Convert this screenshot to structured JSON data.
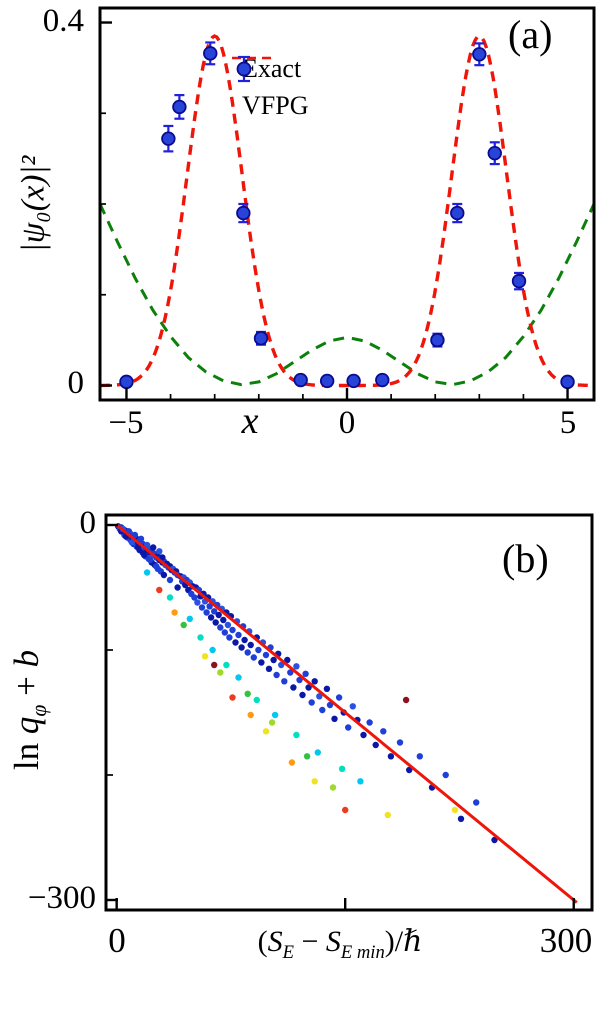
{
  "chart_data": [
    {
      "panel": "a",
      "type": "line+errorbar",
      "panel_label": "(a)",
      "xlabel": "x",
      "ylabel": "|ψ₀(x)|²",
      "xlim": [
        -5.6,
        5.6
      ],
      "ylim": [
        -0.016,
        0.416
      ],
      "xticks_major": [
        -5,
        0,
        5
      ],
      "xticks_minor": [
        -4,
        -3,
        -2,
        -1,
        1,
        2,
        3,
        4
      ],
      "xtick_labels": [
        "−5",
        "0",
        "5"
      ],
      "yticks_major": [
        0,
        0.4
      ],
      "yticks_minor": [
        0.1,
        0.2,
        0.3
      ],
      "ytick_labels": [
        "0",
        "0.4"
      ],
      "legend": [
        {
          "label": "Exact",
          "style": "red-dashed-line"
        },
        {
          "label": "VFPG",
          "style": "blue-errorbar-marker"
        }
      ],
      "exact_curve": {
        "model": "sum_of_gaussians",
        "amplitude": 0.385,
        "centers": [
          -3,
          3
        ],
        "sigma": 0.62,
        "color": "#ef1509"
      },
      "potential_curve": {
        "color": "#0b800b",
        "x": [
          -5.6,
          -5.2,
          -4.8,
          -4.4,
          -4,
          -3.6,
          -3.2,
          -2.8,
          -2.4,
          -2,
          -1.6,
          -1.2,
          -0.8,
          -0.4,
          0,
          0.4,
          0.8,
          1.2,
          1.6,
          2,
          2.4,
          2.8,
          3.2,
          3.6,
          4,
          4.4,
          4.8,
          5.2,
          5.6
        ],
        "y": [
          0.2,
          0.158,
          0.118,
          0.083,
          0.054,
          0.031,
          0.015,
          0.005,
          0.001,
          0.004,
          0.013,
          0.026,
          0.039,
          0.049,
          0.053,
          0.049,
          0.039,
          0.026,
          0.013,
          0.004,
          0.001,
          0.005,
          0.015,
          0.031,
          0.054,
          0.083,
          0.118,
          0.158,
          0.2
        ]
      },
      "vfpg_points": {
        "marker_fill": "#2743d8",
        "marker_edge": "#0b0b8f",
        "bar_color": "#2020dd",
        "points": [
          [
            -5,
            0.004,
            0.004
          ],
          [
            -4.05,
            0.272,
            0.014
          ],
          [
            -3.8,
            0.307,
            0.013
          ],
          [
            -3.1,
            0.366,
            0.012
          ],
          [
            -2.35,
            0.19,
            0.01
          ],
          [
            -1.95,
            0.052,
            0.007
          ],
          [
            -1.05,
            0.006,
            0.003
          ],
          [
            -0.45,
            0.005,
            0.003
          ],
          [
            0.15,
            0.005,
            0.003
          ],
          [
            0.8,
            0.006,
            0.003
          ],
          [
            2.05,
            0.05,
            0.007
          ],
          [
            2.5,
            0.19,
            0.01
          ],
          [
            3,
            0.365,
            0.012
          ],
          [
            3.35,
            0.256,
            0.012
          ],
          [
            3.9,
            0.115,
            0.009
          ],
          [
            5,
            0.004,
            0.004
          ]
        ]
      }
    },
    {
      "panel": "b",
      "type": "scatter+line",
      "panel_label": "(b)",
      "ylabel_parts": {
        "ln": "ln ",
        "q": "q",
        "sub": "φ",
        "plus": " + ",
        "b": "b"
      },
      "xlabel_parts": {
        "open": "(",
        "s1": "S",
        "sub1": "E",
        "minus": " − ",
        "s2": "S",
        "sub2": "E min",
        "close": ")/",
        "hbar": "ℏ"
      },
      "xlim": [
        -7,
        312
      ],
      "ylim": [
        8,
        -308
      ],
      "xticks": [
        0,
        150,
        300
      ],
      "xtick_labels": [
        "0",
        "300"
      ],
      "yticks_major": [
        0,
        -300
      ],
      "yticks_minor": [
        -100,
        -200
      ],
      "ytick_labels": [
        "0",
        "−300"
      ],
      "fit_line": {
        "x0": 0,
        "y0": 0,
        "x1": 302,
        "y1": -302,
        "color": "#ef1509"
      },
      "palette": [
        "#0a18a8",
        "#1f3fd9",
        "#2a52e0",
        "#00c8f0",
        "#00dfc0",
        "#35c240",
        "#9fd92e",
        "#f2e224",
        "#ff9a12",
        "#f03a1e",
        "#8f1020"
      ],
      "points": [
        [
          1,
          -1,
          0
        ],
        [
          2,
          -3,
          1
        ],
        [
          3,
          -2,
          0
        ],
        [
          4,
          -5,
          1
        ],
        [
          5,
          -4,
          0
        ],
        [
          5,
          -8,
          2
        ],
        [
          6,
          -6,
          1
        ],
        [
          7,
          -5,
          0
        ],
        [
          7,
          -10,
          1
        ],
        [
          8,
          -8,
          0
        ],
        [
          9,
          -7,
          2
        ],
        [
          9,
          -12,
          1
        ],
        [
          10,
          -10,
          0
        ],
        [
          11,
          -9,
          1
        ],
        [
          11,
          -15,
          0
        ],
        [
          12,
          -12,
          2
        ],
        [
          13,
          -11,
          0
        ],
        [
          13,
          -17,
          1
        ],
        [
          14,
          -14,
          0
        ],
        [
          15,
          -13,
          1
        ],
        [
          15,
          -20,
          0
        ],
        [
          16,
          -16,
          2
        ],
        [
          17,
          -15,
          1
        ],
        [
          17,
          -22,
          0
        ],
        [
          18,
          -18,
          1
        ],
        [
          19,
          -17,
          0
        ],
        [
          19,
          -25,
          1
        ],
        [
          20,
          -20,
          0
        ],
        [
          21,
          -19,
          2
        ],
        [
          21,
          -27,
          1
        ],
        [
          22,
          -22,
          0
        ],
        [
          23,
          -21,
          1
        ],
        [
          23,
          -30,
          0
        ],
        [
          24,
          -24,
          2
        ],
        [
          25,
          -23,
          1
        ],
        [
          25,
          -32,
          0
        ],
        [
          26,
          -26,
          1
        ],
        [
          27,
          -25,
          0
        ],
        [
          27,
          -35,
          1
        ],
        [
          28,
          -28,
          0
        ],
        [
          29,
          -27,
          2
        ],
        [
          29,
          -37,
          1
        ],
        [
          30,
          -30,
          0
        ],
        [
          31,
          -29,
          1
        ],
        [
          31,
          -40,
          0
        ],
        [
          32,
          -32,
          2
        ],
        [
          33,
          -31,
          0
        ],
        [
          34,
          -34,
          1
        ],
        [
          35,
          -33,
          0
        ],
        [
          35,
          -44,
          1
        ],
        [
          36,
          -36,
          0
        ],
        [
          37,
          -35,
          2
        ],
        [
          38,
          -38,
          1
        ],
        [
          39,
          -37,
          0
        ],
        [
          40,
          -40,
          1
        ],
        [
          40,
          -50,
          0
        ],
        [
          2,
          -2,
          1
        ],
        [
          3,
          -5,
          0
        ],
        [
          4,
          -3,
          2
        ],
        [
          6,
          -9,
          0
        ],
        [
          8,
          -5,
          1
        ],
        [
          10,
          -14,
          2
        ],
        [
          12,
          -8,
          1
        ],
        [
          14,
          -18,
          0
        ],
        [
          16,
          -11,
          1
        ],
        [
          18,
          -24,
          0
        ],
        [
          20,
          -16,
          2
        ],
        [
          22,
          -28,
          1
        ],
        [
          24,
          -18,
          0
        ],
        [
          26,
          -33,
          1
        ],
        [
          28,
          -21,
          2
        ],
        [
          30,
          -26,
          0
        ],
        [
          42,
          -41,
          0
        ],
        [
          43,
          -45,
          1
        ],
        [
          44,
          -42,
          2
        ],
        [
          45,
          -48,
          0
        ],
        [
          46,
          -44,
          1
        ],
        [
          47,
          -52,
          0
        ],
        [
          48,
          -46,
          2
        ],
        [
          49,
          -55,
          1
        ],
        [
          50,
          -49,
          0
        ],
        [
          51,
          -58,
          1
        ],
        [
          52,
          -50,
          0
        ],
        [
          53,
          -62,
          2
        ],
        [
          54,
          -52,
          1
        ],
        [
          55,
          -57,
          0
        ],
        [
          56,
          -66,
          1
        ],
        [
          57,
          -55,
          0
        ],
        [
          58,
          -61,
          2
        ],
        [
          59,
          -70,
          1
        ],
        [
          60,
          -58,
          0
        ],
        [
          61,
          -65,
          1
        ],
        [
          62,
          -74,
          0
        ],
        [
          63,
          -61,
          2
        ],
        [
          64,
          -69,
          1
        ],
        [
          65,
          -78,
          0
        ],
        [
          66,
          -64,
          1
        ],
        [
          67,
          -72,
          0
        ],
        [
          68,
          -82,
          1
        ],
        [
          69,
          -67,
          2
        ],
        [
          70,
          -76,
          0
        ],
        [
          71,
          -86,
          1
        ],
        [
          72,
          -70,
          0
        ],
        [
          73,
          -80,
          2
        ],
        [
          74,
          -90,
          1
        ],
        [
          75,
          -73,
          0
        ],
        [
          76,
          -84,
          1
        ],
        [
          78,
          -94,
          0
        ],
        [
          79,
          -77,
          2
        ],
        [
          80,
          -88,
          1
        ],
        [
          82,
          -98,
          0
        ],
        [
          83,
          -81,
          1
        ],
        [
          84,
          -92,
          0
        ],
        [
          86,
          -102,
          1
        ],
        [
          87,
          -85,
          2
        ],
        [
          88,
          -96,
          0
        ],
        [
          90,
          -106,
          1
        ],
        [
          92,
          -90,
          0
        ],
        [
          93,
          -100,
          1
        ],
        [
          95,
          -110,
          0
        ],
        [
          96,
          -94,
          2
        ],
        [
          98,
          -104,
          1
        ],
        [
          100,
          -115,
          0
        ],
        [
          101,
          -98,
          1
        ],
        [
          103,
          -108,
          0
        ],
        [
          105,
          -120,
          1
        ],
        [
          106,
          -103,
          0
        ],
        [
          108,
          -112,
          2
        ],
        [
          110,
          -125,
          1
        ],
        [
          112,
          -108,
          0
        ],
        [
          114,
          -118,
          1
        ],
        [
          116,
          -130,
          0
        ],
        [
          118,
          -113,
          2
        ],
        [
          120,
          -124,
          1
        ],
        [
          122,
          -136,
          0
        ],
        [
          124,
          -119,
          1
        ],
        [
          126,
          -130,
          0
        ],
        [
          128,
          -142,
          1
        ],
        [
          130,
          -125,
          0
        ],
        [
          133,
          -137,
          2
        ],
        [
          135,
          -148,
          1
        ],
        [
          138,
          -131,
          0
        ],
        [
          140,
          -144,
          1
        ],
        [
          143,
          -155,
          0
        ],
        [
          146,
          -138,
          1
        ],
        [
          149,
          -150,
          0
        ],
        [
          152,
          -162,
          1
        ],
        [
          155,
          -145,
          2
        ],
        [
          158,
          -156,
          0
        ],
        [
          162,
          -168,
          0
        ],
        [
          166,
          -158,
          1
        ],
        [
          170,
          -176,
          0
        ],
        [
          175,
          -165,
          1
        ],
        [
          180,
          -185,
          0
        ],
        [
          186,
          -174,
          1
        ],
        [
          192,
          -196,
          0
        ],
        [
          199,
          -185,
          1
        ],
        [
          207,
          -210,
          0
        ],
        [
          216,
          -200,
          1
        ],
        [
          226,
          -235,
          0
        ],
        [
          236,
          -222,
          1
        ],
        [
          248,
          -252,
          0
        ],
        [
          20,
          -38,
          3
        ],
        [
          35,
          -58,
          4
        ],
        [
          48,
          -75,
          3
        ],
        [
          55,
          -90,
          4
        ],
        [
          63,
          -100,
          3
        ],
        [
          72,
          -112,
          4
        ],
        [
          80,
          -122,
          3
        ],
        [
          92,
          -140,
          4
        ],
        [
          104,
          -152,
          3
        ],
        [
          118,
          -168,
          4
        ],
        [
          132,
          -182,
          3
        ],
        [
          148,
          -195,
          4
        ],
        [
          160,
          -205,
          3
        ],
        [
          44,
          -80,
          5
        ],
        [
          68,
          -118,
          6
        ],
        [
          86,
          -135,
          5
        ],
        [
          102,
          -158,
          6
        ],
        [
          125,
          -185,
          5
        ],
        [
          142,
          -210,
          6
        ],
        [
          58,
          -105,
          7
        ],
        [
          98,
          -165,
          7
        ],
        [
          130,
          -205,
          7
        ],
        [
          222,
          -228,
          7
        ],
        [
          178,
          -232,
          7
        ],
        [
          38,
          -70,
          8
        ],
        [
          88,
          -152,
          8
        ],
        [
          115,
          -190,
          8
        ],
        [
          28,
          -52,
          9
        ],
        [
          76,
          -138,
          9
        ],
        [
          150,
          -228,
          9
        ],
        [
          64,
          -112,
          10
        ],
        [
          190,
          -140,
          10
        ]
      ]
    }
  ]
}
